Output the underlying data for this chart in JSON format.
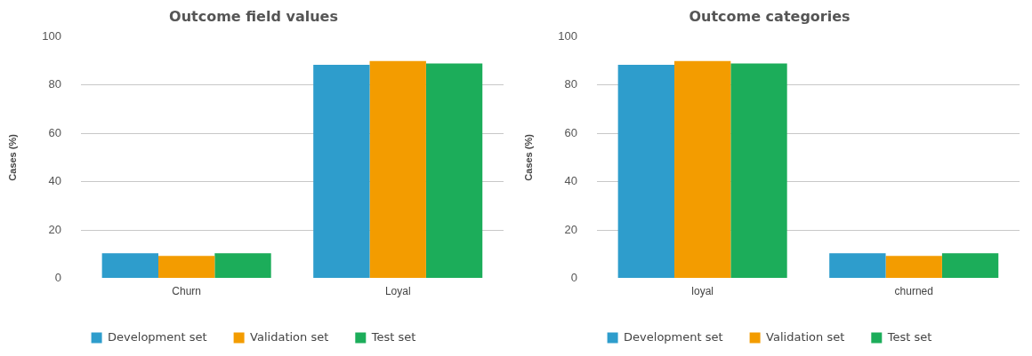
{
  "chart_data": [
    {
      "type": "bar",
      "title": "Outcome field values",
      "ylabel": "Cases (%)",
      "categories": [
        "Churn",
        "Loyal"
      ],
      "series": [
        {
          "name": "Development set",
          "color": "#2e9dcc",
          "values": [
            10.4,
            88.3
          ]
        },
        {
          "name": "Validation set",
          "color": "#f39c00",
          "values": [
            9.3,
            89.9
          ]
        },
        {
          "name": "Test set",
          "color": "#1cad5a",
          "values": [
            10.4,
            88.9
          ]
        }
      ],
      "ylim": [
        0,
        100
      ],
      "yticks": [
        0,
        20,
        40,
        60,
        80,
        100
      ],
      "grid": "y",
      "legend": "bottom"
    },
    {
      "type": "bar",
      "title": "Outcome categories",
      "ylabel": "Cases (%)",
      "categories": [
        "loyal",
        "churned"
      ],
      "series": [
        {
          "name": "Development set",
          "color": "#2e9dcc",
          "values": [
            88.3,
            10.4
          ]
        },
        {
          "name": "Validation set",
          "color": "#f39c00",
          "values": [
            89.9,
            9.3
          ]
        },
        {
          "name": "Test set",
          "color": "#1cad5a",
          "values": [
            88.9,
            10.4
          ]
        }
      ],
      "ylim": [
        0,
        100
      ],
      "yticks": [
        0,
        20,
        40,
        60,
        80,
        100
      ],
      "grid": "y",
      "legend": "bottom"
    }
  ]
}
